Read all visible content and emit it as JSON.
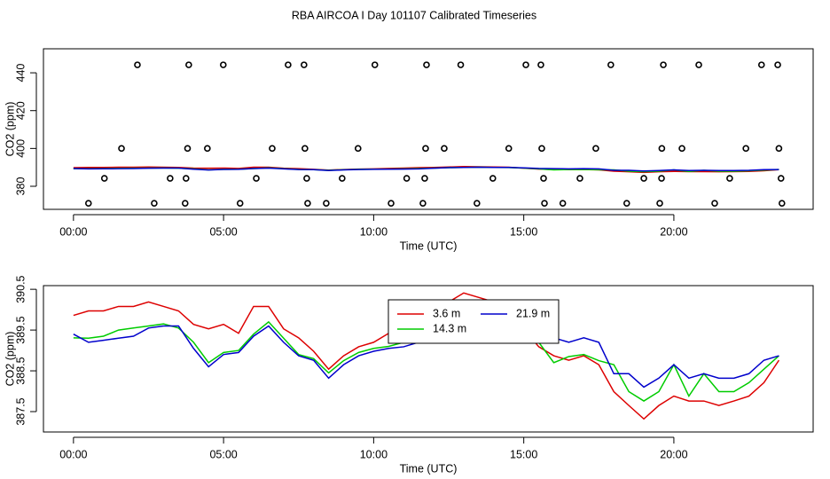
{
  "chart_data": [
    {
      "type": "scatter",
      "title": "RBA AIRCOA I  Day 101107  Calibrated Timeseries",
      "x_label": "Time (UTC)",
      "y_label": "CO2 (ppm)",
      "x": [
        2.13,
        3.84,
        4.99,
        7.15,
        7.68,
        10.04,
        11.76,
        12.9,
        15.07,
        15.57,
        17.9,
        19.65,
        20.83,
        22.92,
        23.46,
        1.6,
        3.8,
        4.46,
        6.62,
        7.71,
        9.48,
        11.73,
        12.35,
        14.5,
        15.6,
        17.4,
        19.6,
        20.27,
        22.4,
        23.5,
        1.03,
        3.22,
        3.75,
        6.09,
        7.77,
        8.95,
        11.1,
        11.7,
        13.97,
        15.66,
        16.87,
        19.0,
        19.59,
        21.86,
        23.57,
        0.5,
        2.69,
        3.72,
        5.55,
        7.8,
        8.42,
        10.58,
        11.64,
        13.44,
        15.69,
        16.3,
        18.43,
        19.53,
        21.36,
        23.6
      ],
      "values": [
        444.2,
        444.2,
        444.2,
        444.2,
        444.2,
        444.2,
        444.2,
        444.2,
        444.2,
        444.2,
        444.2,
        444.2,
        444.2,
        444.2,
        444.2,
        400,
        400,
        400,
        400,
        400,
        400,
        400,
        400,
        400,
        400,
        400,
        400,
        400,
        400,
        400,
        384.2,
        384.2,
        384.2,
        384.2,
        384.2,
        384.2,
        384.2,
        384.2,
        384.2,
        384.2,
        384.2,
        384.2,
        384.2,
        384.2,
        384.2,
        371,
        371,
        371,
        371,
        371,
        371,
        371,
        371,
        371,
        371,
        371,
        371,
        371,
        371,
        371
      ],
      "color": "#000000",
      "xlim": [
        -1.0,
        24.64
      ],
      "ylim": [
        367.8,
        452.7
      ],
      "xticks": [
        {
          "value": 0,
          "label": "00:00"
        },
        {
          "value": 5,
          "label": "05:00"
        },
        {
          "value": 10,
          "label": "10:00"
        },
        {
          "value": 15,
          "label": "15:00"
        },
        {
          "value": 20,
          "label": "20:00"
        }
      ],
      "yticks": [
        380,
        400,
        420,
        440
      ]
    },
    {
      "type": "line",
      "x_label": "Time (UTC)",
      "y_label": "CO2 (ppm)",
      "x": [
        0,
        0.5,
        1,
        1.5,
        2,
        2.5,
        3,
        3.5,
        4,
        4.5,
        5,
        5.5,
        6,
        6.5,
        7,
        7.5,
        8,
        8.5,
        9,
        9.5,
        10,
        10.5,
        11,
        11.5,
        12,
        12.5,
        13,
        13.5,
        14,
        14.5,
        15,
        15.5,
        16,
        16.5,
        17,
        17.5,
        18,
        18.5,
        19,
        19.5,
        20,
        20.5,
        21,
        21.5,
        22,
        22.5,
        23,
        23.5
      ],
      "series": [
        {
          "name": "3.6 m",
          "color": "#dd0000",
          "values": [
            389.86,
            389.97,
            389.97,
            390.08,
            390.08,
            390.19,
            390.08,
            389.97,
            389.64,
            389.53,
            389.64,
            389.42,
            390.08,
            390.08,
            389.53,
            389.31,
            388.98,
            388.54,
            388.87,
            389.09,
            389.2,
            389.42,
            389.64,
            389.86,
            389.97,
            390.19,
            390.41,
            390.3,
            390.19,
            390.08,
            389.53,
            389.09,
            388.87,
            388.76,
            388.87,
            388.65,
            387.99,
            387.65,
            387.32,
            387.65,
            387.88,
            387.76,
            387.76,
            387.65,
            387.76,
            387.88,
            388.21,
            388.76
          ]
        },
        {
          "name": "14.3 m",
          "color": "#00cc00",
          "values": [
            389.31,
            389.3,
            389.35,
            389.5,
            389.55,
            389.6,
            389.65,
            389.55,
            389.2,
            388.7,
            388.95,
            389.0,
            389.4,
            389.7,
            389.3,
            388.9,
            388.8,
            388.45,
            388.75,
            388.95,
            389.05,
            389.1,
            389.2,
            389.4,
            389.6,
            389.85,
            389.95,
            390.05,
            389.95,
            389.9,
            389.6,
            389.2,
            388.7,
            388.85,
            388.9,
            388.75,
            388.65,
            387.99,
            387.76,
            387.99,
            388.65,
            387.88,
            388.43,
            387.99,
            387.99,
            388.21,
            388.54,
            388.87
          ]
        },
        {
          "name": "21.9 m",
          "color": "#0000cc",
          "values": [
            389.4,
            389.2,
            389.25,
            389.3,
            389.35,
            389.55,
            389.6,
            389.6,
            389.05,
            388.6,
            388.9,
            388.95,
            389.35,
            389.6,
            389.2,
            388.87,
            388.76,
            388.32,
            388.65,
            388.87,
            388.98,
            389.05,
            389.09,
            389.2,
            389.53,
            389.86,
            389.95,
            390.05,
            389.95,
            389.95,
            389.75,
            389.42,
            389.31,
            389.2,
            389.31,
            389.2,
            388.43,
            388.43,
            388.1,
            388.32,
            388.65,
            388.32,
            388.43,
            388.32,
            388.32,
            388.43,
            388.76,
            388.87
          ]
        }
      ],
      "legend": "top",
      "xlim": [
        -1.0,
        24.64
      ],
      "ylim": [
        387.0,
        390.59
      ],
      "xticks": [
        {
          "value": 0,
          "label": "00:00"
        },
        {
          "value": 5,
          "label": "05:00"
        },
        {
          "value": 10,
          "label": "10:00"
        },
        {
          "value": 15,
          "label": "15:00"
        },
        {
          "value": 20,
          "label": "20:00"
        }
      ],
      "yticks": [
        387.5,
        388.5,
        389.5,
        390.5
      ]
    }
  ]
}
